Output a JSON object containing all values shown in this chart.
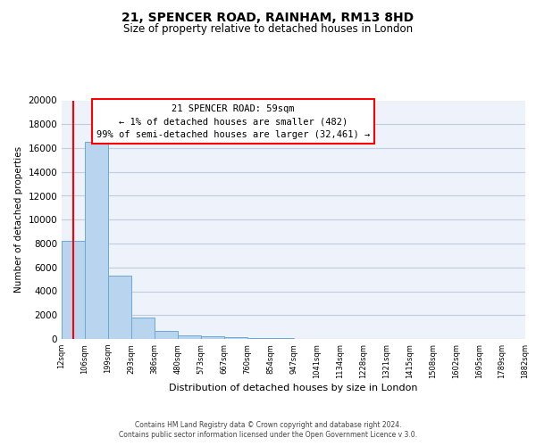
{
  "title": "21, SPENCER ROAD, RAINHAM, RM13 8HD",
  "subtitle": "Size of property relative to detached houses in London",
  "xlabel": "Distribution of detached houses by size in London",
  "ylabel": "Number of detached properties",
  "bar_color": "#b8d4ee",
  "bar_edge_color": "#6aaad4",
  "background_color": "#eef2fa",
  "grid_color": "#c0cce0",
  "tick_labels": [
    "12sqm",
    "106sqm",
    "199sqm",
    "293sqm",
    "386sqm",
    "480sqm",
    "573sqm",
    "667sqm",
    "760sqm",
    "854sqm",
    "947sqm",
    "1041sqm",
    "1134sqm",
    "1228sqm",
    "1321sqm",
    "1415sqm",
    "1508sqm",
    "1602sqm",
    "1695sqm",
    "1789sqm",
    "1882sqm"
  ],
  "bar_heights": [
    8200,
    16500,
    5300,
    1800,
    700,
    300,
    250,
    150,
    100,
    50,
    0,
    0,
    0,
    0,
    0,
    0,
    0,
    0,
    0,
    0
  ],
  "ylim": [
    0,
    20000
  ],
  "yticks": [
    0,
    2000,
    4000,
    6000,
    8000,
    10000,
    12000,
    14000,
    16000,
    18000,
    20000
  ],
  "property_sqm": 59,
  "bin_edges_start": [
    12,
    106,
    199,
    293,
    386,
    480,
    573,
    667,
    760,
    854,
    947,
    1041,
    1134,
    1228,
    1321,
    1415,
    1508,
    1602,
    1695,
    1789,
    1882
  ],
  "annotation_line1": "21 SPENCER ROAD: 59sqm",
  "annotation_line2": "← 1% of detached houses are smaller (482)",
  "annotation_line3": "99% of semi-detached houses are larger (32,461) →",
  "footer_line1": "Contains HM Land Registry data © Crown copyright and database right 2024.",
  "footer_line2": "Contains public sector information licensed under the Open Government Licence v 3.0.",
  "title_fontsize": 10,
  "subtitle_fontsize": 8.5,
  "ylabel_fontsize": 7.5,
  "xlabel_fontsize": 8,
  "ytick_fontsize": 7.5,
  "xtick_fontsize": 6.0,
  "footer_fontsize": 5.5,
  "ann_fontsize": 7.5
}
